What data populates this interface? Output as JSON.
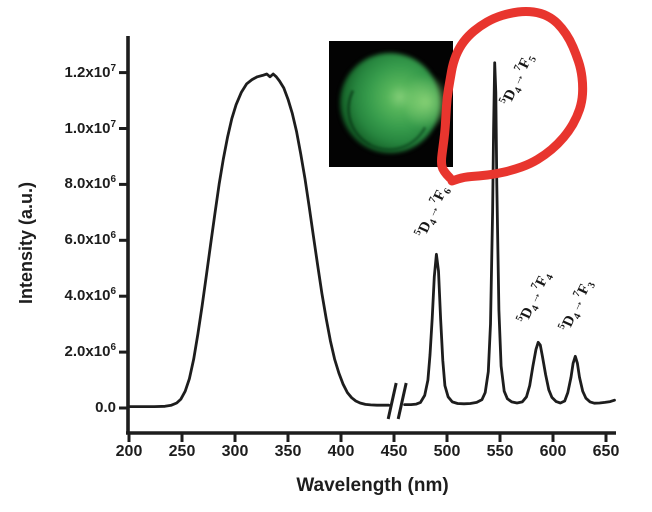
{
  "figure": {
    "background_color": "#ffffff",
    "axis_color": "#1d1d1d",
    "curve_color": "#1d1d1d",
    "annotation_color": "#e8352e",
    "inset_background": "#030303",
    "inset_sphere_colors": [
      "#84cf78",
      "#379c4c",
      "#0a3a16"
    ]
  },
  "chart_data": {
    "type": "line",
    "title": "",
    "xlabel": "Wavelength (nm)",
    "ylabel": "Intensity (a.u.)",
    "xlim": [
      195,
      660
    ],
    "ylim": [
      0,
      13000000
    ],
    "grid": false,
    "legend": "none",
    "intensity_unit_scale": 1000000,
    "x_ticks": [
      200,
      250,
      300,
      350,
      400,
      450,
      500,
      550,
      600,
      650
    ],
    "y_ticks": [
      {
        "value_millions": 12,
        "mantissa": "1.2x10",
        "exponent": "7"
      },
      {
        "value_millions": 10,
        "mantissa": "1.0x10",
        "exponent": "7"
      },
      {
        "value_millions": 8,
        "mantissa": "8.0x10",
        "exponent": "6"
      },
      {
        "value_millions": 6,
        "mantissa": "6.0x10",
        "exponent": "6"
      },
      {
        "value_millions": 4,
        "mantissa": "4.0x10",
        "exponent": "6"
      },
      {
        "value_millions": 2,
        "mantissa": "2.0x10",
        "exponent": "6"
      },
      {
        "value_millions": 0,
        "mantissa": "0.0",
        "exponent": ""
      }
    ],
    "axis_break": {
      "between_nm": [
        446,
        460
      ]
    },
    "series": [
      {
        "name": "excitation-band",
        "points_nm_millions": [
          [
            200,
            0.05
          ],
          [
            212,
            0.05
          ],
          [
            224,
            0.05
          ],
          [
            234,
            0.06
          ],
          [
            240,
            0.1
          ],
          [
            245,
            0.18
          ],
          [
            249,
            0.32
          ],
          [
            253,
            0.6
          ],
          [
            257,
            1.05
          ],
          [
            261,
            1.75
          ],
          [
            265,
            2.65
          ],
          [
            269,
            3.65
          ],
          [
            273,
            4.75
          ],
          [
            277,
            5.85
          ],
          [
            281,
            6.95
          ],
          [
            285,
            8.0
          ],
          [
            289,
            8.9
          ],
          [
            293,
            9.7
          ],
          [
            297,
            10.35
          ],
          [
            301,
            10.85
          ],
          [
            306,
            11.3
          ],
          [
            311,
            11.6
          ],
          [
            316,
            11.75
          ],
          [
            321,
            11.85
          ],
          [
            326,
            11.9
          ],
          [
            330,
            11.95
          ],
          [
            333,
            11.85
          ],
          [
            336,
            11.95
          ],
          [
            339,
            11.85
          ],
          [
            342,
            11.7
          ],
          [
            346,
            11.45
          ],
          [
            350,
            11.05
          ],
          [
            354,
            10.55
          ],
          [
            358,
            9.9
          ],
          [
            362,
            9.1
          ],
          [
            366,
            8.2
          ],
          [
            370,
            7.2
          ],
          [
            374,
            6.15
          ],
          [
            378,
            5.1
          ],
          [
            382,
            4.1
          ],
          [
            386,
            3.2
          ],
          [
            390,
            2.4
          ],
          [
            394,
            1.75
          ],
          [
            398,
            1.25
          ],
          [
            402,
            0.85
          ],
          [
            406,
            0.55
          ],
          [
            410,
            0.37
          ],
          [
            414,
            0.25
          ],
          [
            418,
            0.18
          ],
          [
            423,
            0.13
          ],
          [
            428,
            0.11
          ],
          [
            434,
            0.1
          ],
          [
            440,
            0.1
          ],
          [
            445,
            0.1
          ]
        ]
      },
      {
        "name": "emission-spectrum",
        "points_nm_millions": [
          [
            460,
            0.12
          ],
          [
            466,
            0.12
          ],
          [
            471,
            0.14
          ],
          [
            475,
            0.2
          ],
          [
            479,
            0.45
          ],
          [
            482,
            1.0
          ],
          [
            484,
            1.9
          ],
          [
            486,
            3.2
          ],
          [
            488,
            4.7
          ],
          [
            490,
            5.5
          ],
          [
            492,
            4.9
          ],
          [
            494,
            3.2
          ],
          [
            496,
            1.7
          ],
          [
            498,
            0.8
          ],
          [
            501,
            0.4
          ],
          [
            505,
            0.22
          ],
          [
            510,
            0.16
          ],
          [
            516,
            0.15
          ],
          [
            522,
            0.16
          ],
          [
            528,
            0.2
          ],
          [
            533,
            0.3
          ],
          [
            536,
            0.55
          ],
          [
            539,
            1.3
          ],
          [
            541,
            3.0
          ],
          [
            543,
            7.0
          ],
          [
            544,
            10.0
          ],
          [
            545,
            12.35
          ],
          [
            546,
            11.3
          ],
          [
            547,
            8.0
          ],
          [
            549,
            3.5
          ],
          [
            551,
            1.5
          ],
          [
            554,
            0.6
          ],
          [
            557,
            0.33
          ],
          [
            561,
            0.22
          ],
          [
            566,
            0.18
          ],
          [
            571,
            0.22
          ],
          [
            575,
            0.4
          ],
          [
            578,
            0.8
          ],
          [
            581,
            1.5
          ],
          [
            584,
            2.1
          ],
          [
            586,
            2.35
          ],
          [
            588,
            2.25
          ],
          [
            590,
            1.85
          ],
          [
            593,
            1.2
          ],
          [
            596,
            0.65
          ],
          [
            599,
            0.38
          ],
          [
            603,
            0.23
          ],
          [
            607,
            0.18
          ],
          [
            611,
            0.25
          ],
          [
            614,
            0.55
          ],
          [
            617,
            1.1
          ],
          [
            619,
            1.6
          ],
          [
            621,
            1.85
          ],
          [
            623,
            1.6
          ],
          [
            625,
            1.1
          ],
          [
            628,
            0.6
          ],
          [
            631,
            0.35
          ],
          [
            635,
            0.22
          ],
          [
            639,
            0.17
          ],
          [
            644,
            0.18
          ],
          [
            649,
            0.2
          ],
          [
            654,
            0.23
          ],
          [
            658,
            0.28
          ]
        ]
      }
    ],
    "peaks": [
      {
        "wavelength_nm": 490,
        "intensity": 5500000,
        "term": {
          "sup1": "5",
          "base1": "D",
          "sub1": "4",
          "arrow": "→",
          "sup2": "7",
          "base2": "F",
          "sub2": "6"
        }
      },
      {
        "wavelength_nm": 545,
        "intensity": 12350000,
        "term": {
          "sup1": "5",
          "base1": "D",
          "sub1": "4",
          "arrow": "→",
          "sup2": "7",
          "base2": "F",
          "sub2": "5"
        }
      },
      {
        "wavelength_nm": 586,
        "intensity": 2350000,
        "term": {
          "sup1": "5",
          "base1": "D",
          "sub1": "4",
          "arrow": "→",
          "sup2": "7",
          "base2": "F",
          "sub2": "4"
        }
      },
      {
        "wavelength_nm": 621,
        "intensity": 1850000,
        "term": {
          "sup1": "5",
          "base1": "D",
          "sub1": "4",
          "arrow": "→",
          "sup2": "7",
          "base2": "F",
          "sub2": "3"
        }
      }
    ],
    "annotations": {
      "red_loop_circles_peak_nm": 545,
      "red_loop_points": [
        [
          450,
          178
        ],
        [
          443,
          171
        ],
        [
          441,
          162
        ],
        [
          443,
          147
        ],
        [
          445,
          131
        ],
        [
          446,
          114
        ],
        [
          447,
          98
        ],
        [
          450,
          80
        ],
        [
          453,
          63
        ],
        [
          459,
          48
        ],
        [
          468,
          36
        ],
        [
          480,
          26
        ],
        [
          494,
          18
        ],
        [
          510,
          13
        ],
        [
          526,
          11
        ],
        [
          541,
          13
        ],
        [
          553,
          19
        ],
        [
          562,
          28
        ],
        [
          570,
          40
        ],
        [
          576,
          54
        ],
        [
          581,
          69
        ],
        [
          583,
          86
        ],
        [
          582,
          102
        ],
        [
          577,
          117
        ],
        [
          569,
          131
        ],
        [
          558,
          144
        ],
        [
          545,
          155
        ],
        [
          530,
          164
        ],
        [
          513,
          170
        ],
        [
          496,
          174
        ],
        [
          479,
          176
        ],
        [
          464,
          177
        ],
        [
          452,
          181
        ]
      ]
    }
  },
  "inset": {
    "content": "green luminescent microsphere micrograph"
  }
}
